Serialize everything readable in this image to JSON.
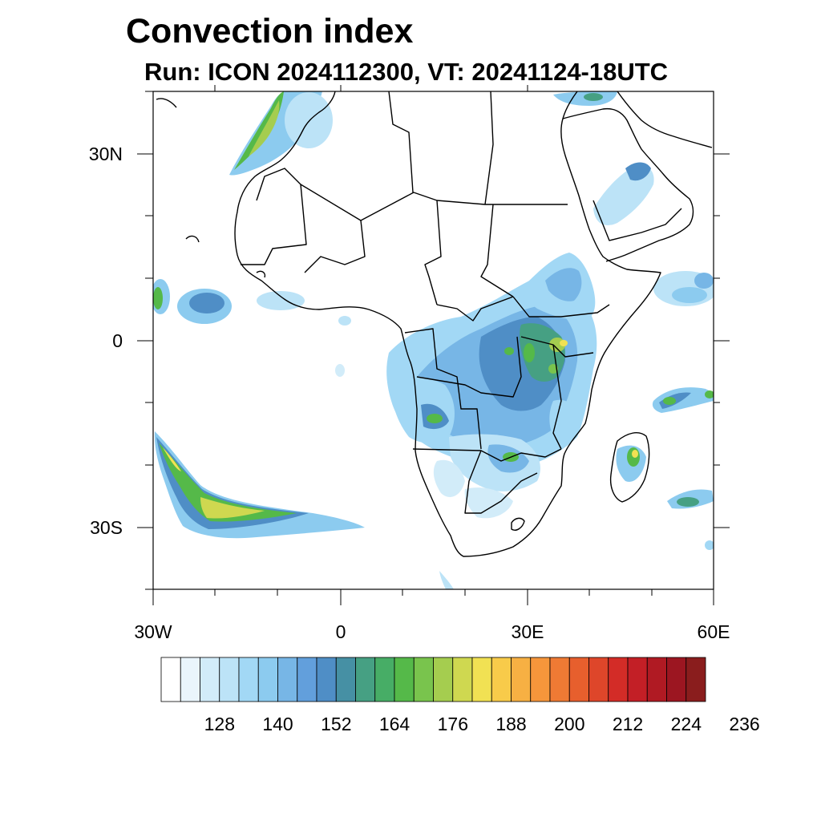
{
  "title": "Convection index",
  "subtitle": "Run: ICON 2024112300,  VT: 20241124-18UTC",
  "axes": {
    "lat_labels": [
      "30N",
      "0",
      "30S"
    ],
    "lon_labels": [
      "30W",
      "0",
      "30E",
      "60E"
    ],
    "lon_range": [
      -30,
      60
    ],
    "lat_range": [
      -40,
      40
    ]
  },
  "colorbar": {
    "labels": [
      "128",
      "140",
      "152",
      "164",
      "176",
      "188",
      "200",
      "212",
      "224",
      "236"
    ],
    "colors": [
      "#ffffff",
      "#eaf5fc",
      "#d2ecf9",
      "#bce3f7",
      "#a2d8f5",
      "#8ccbef",
      "#77b6e6",
      "#629fdc",
      "#4f8ec6",
      "#4690a4",
      "#46a083",
      "#47ad66",
      "#55b949",
      "#79c44d",
      "#a5cd4f",
      "#cfd850",
      "#f1e153",
      "#f8cb4a",
      "#f7b043",
      "#f6963b",
      "#ef7a34",
      "#e75f2d",
      "#de462a",
      "#d32c27",
      "#c31f26",
      "#b01a23",
      "#9c1621",
      "#8a1d1d"
    ]
  },
  "map": {
    "background_color": "#ffffff",
    "land_outline_color": "#000000"
  }
}
